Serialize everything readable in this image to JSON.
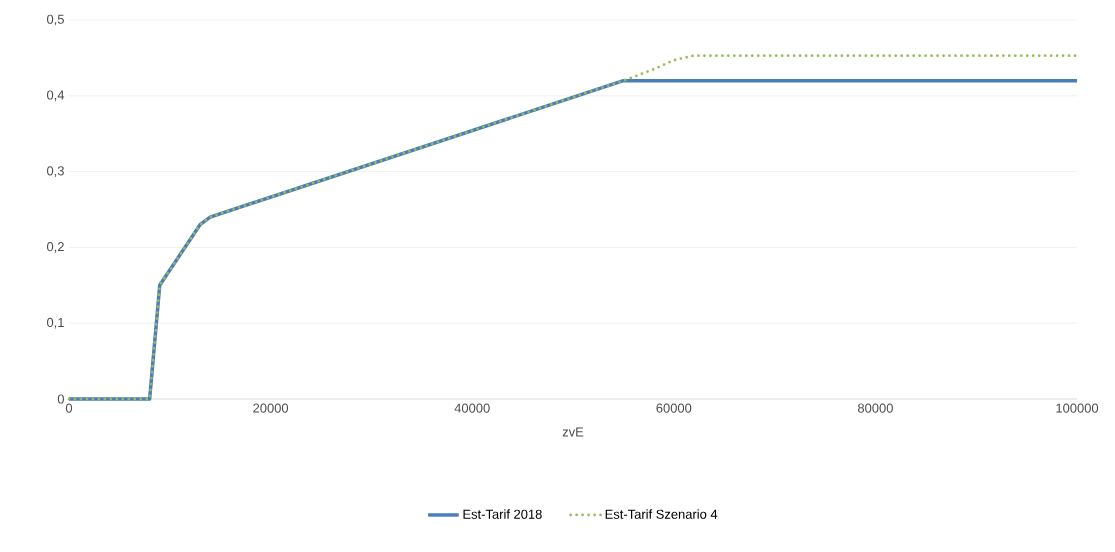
{
  "chart_data": {
    "type": "line",
    "xlabel": "zvE",
    "xlim": [
      0,
      100000
    ],
    "xticks": [
      0,
      20000,
      40000,
      60000,
      80000,
      100000
    ],
    "ylim": [
      0,
      0.5
    ],
    "yticks": [
      0,
      {
        "value": 0.1,
        "label": "0,1"
      },
      {
        "value": 0.2,
        "label": "0,2"
      },
      {
        "value": 0.3,
        "label": "0,3"
      },
      {
        "value": 0.4,
        "label": "0,4"
      },
      {
        "value": 0.5,
        "label": "0,5"
      }
    ],
    "grid": "y",
    "legend": "bottom",
    "marker": "none",
    "series": [
      {
        "name": "Est-Tarif 2018",
        "color": "#4a7ebb",
        "line_style": "solid",
        "x": [
          0,
          8000,
          9000,
          13000,
          14000,
          55000,
          100000
        ],
        "values": [
          0,
          0,
          0.15,
          0.23,
          0.24,
          0.42,
          0.42
        ]
      },
      {
        "name": "Est-Tarif Szenario 4",
        "color": "#9bbb59",
        "line_style": "dotted",
        "x": [
          0,
          8000,
          9000,
          13000,
          14000,
          55000,
          58000,
          60000,
          62000,
          100000
        ],
        "values": [
          0,
          0,
          0.15,
          0.23,
          0.24,
          0.42,
          0.435,
          0.447,
          0.453,
          0.453
        ]
      }
    ]
  }
}
